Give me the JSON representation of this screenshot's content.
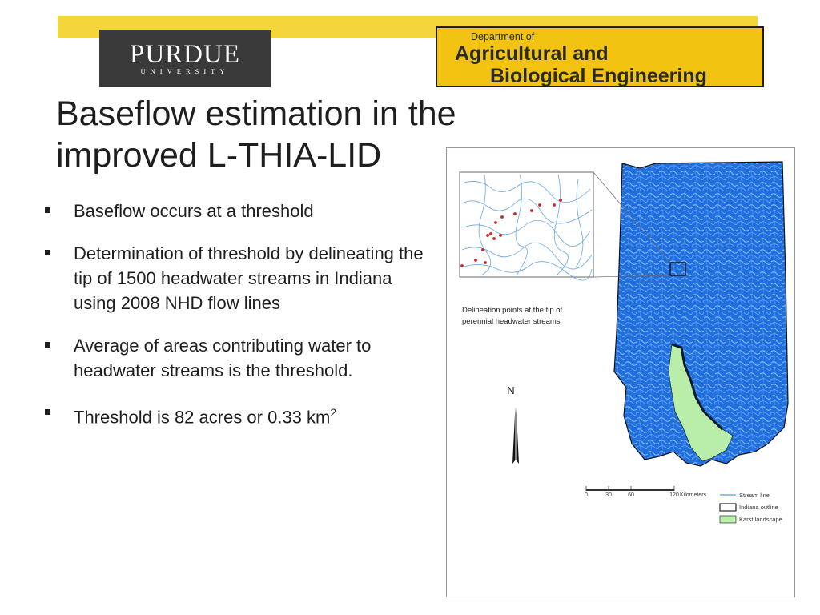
{
  "header": {
    "purdue_name": "PURDUE",
    "purdue_sub": "UNIVERSITY",
    "dept_line1": "Department of",
    "dept_line2": "Agricultural and",
    "dept_line3": "Biological Engineering"
  },
  "slide": {
    "title": "Baseflow estimation in the improved L-THIA-LID",
    "bullets": [
      "Baseflow occurs at a threshold",
      "Determination of threshold by delineating the tip of 1500 headwater streams in Indiana using 2008 NHD flow lines",
      "Average of areas contributing water to headwater streams is the threshold.",
      "Threshold is 82 acres or 0.33 km"
    ],
    "superscript": "2"
  },
  "map": {
    "inset_caption_line1": "Delineation points at the tip of",
    "inset_caption_line2": "perennial headwater streams",
    "north_label": "N",
    "scale_ticks": [
      "0",
      "30",
      "60",
      "120"
    ],
    "scale_unit": "Kilometers",
    "legend": [
      {
        "label": "Stream line",
        "color": "#4aa3df"
      },
      {
        "label": "Indiana outline",
        "color": "#ffffff"
      },
      {
        "label": "Karst landscape",
        "color": "#b8eeaa"
      }
    ],
    "stream_color": "#1f6fe0",
    "point_color": "#d0222a"
  }
}
